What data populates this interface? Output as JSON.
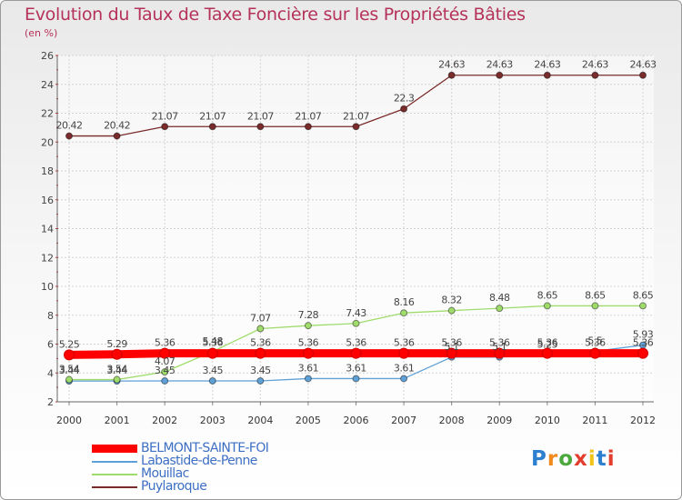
{
  "title": "Evolution du Taux de Taxe Foncière sur les Propriétés Bâties",
  "unit_label": "(en %)",
  "logo": {
    "text": "Proxiti",
    "colors": [
      "#2d7fd0",
      "#f08a1c",
      "#4aa83c",
      "#e33d2d",
      "#f0c419",
      "#2d7fd0",
      "#e33d2d"
    ]
  },
  "chart_data": {
    "type": "line",
    "x": [
      "2000",
      "2001",
      "2002",
      "2003",
      "2004",
      "2005",
      "2006",
      "2007",
      "2008",
      "2009",
      "2010",
      "2011",
      "2012"
    ],
    "ylim": [
      2,
      26
    ],
    "yticks": [
      2,
      4,
      6,
      8,
      10,
      12,
      14,
      16,
      18,
      20,
      22,
      24,
      26
    ],
    "grid": true,
    "legend_position": "bottom-left",
    "series": [
      {
        "name": "BELMONT-SAINTE-FOI",
        "color": "#ff0000",
        "width": 9,
        "values": [
          5.25,
          5.29,
          5.36,
          5.36,
          5.36,
          5.36,
          5.36,
          5.36,
          5.36,
          5.36,
          5.36,
          5.36,
          5.36
        ],
        "labels": [
          "5.25",
          "5.29",
          "5.36",
          "5.36",
          "5.36",
          "5.36",
          "5.36",
          "5.36",
          "5.36",
          "5.36",
          "5.36",
          "5.36",
          "5.36"
        ]
      },
      {
        "name": "Labastide-de-Penne",
        "color": "#5fa0d6",
        "width": 1.3,
        "values": [
          3.44,
          3.44,
          3.45,
          3.45,
          3.45,
          3.61,
          3.61,
          3.61,
          5.1,
          5.1,
          5.25,
          5.5,
          5.93
        ],
        "labels": [
          "3.44",
          "3.44",
          "3.45",
          "3.45",
          "3.45",
          "3.61",
          "3.61",
          "3.61",
          "5.1",
          "5.1",
          "5.25",
          "5.5",
          "5.93"
        ]
      },
      {
        "name": "Mouillac",
        "color": "#9fdc6c",
        "width": 1.3,
        "values": [
          3.54,
          3.54,
          4.07,
          5.48,
          7.07,
          7.28,
          7.43,
          8.16,
          8.32,
          8.48,
          8.65,
          8.65,
          8.65
        ],
        "labels": [
          "3.54",
          "3.54",
          "4.07",
          "5.48",
          "7.07",
          "7.28",
          "7.43",
          "8.16",
          "8.32",
          "8.48",
          "8.65",
          "8.65",
          "8.65"
        ]
      },
      {
        "name": "Puylaroque",
        "color": "#7a2b2b",
        "width": 1.3,
        "values": [
          20.42,
          20.42,
          21.07,
          21.07,
          21.07,
          21.07,
          21.07,
          22.3,
          24.63,
          24.63,
          24.63,
          24.63,
          24.63
        ],
        "labels": [
          "20.42",
          "20.42",
          "21.07",
          "21.07",
          "21.07",
          "21.07",
          "21.07",
          "22.3",
          "24.63",
          "24.63",
          "24.63",
          "24.63",
          "24.63"
        ]
      }
    ]
  }
}
